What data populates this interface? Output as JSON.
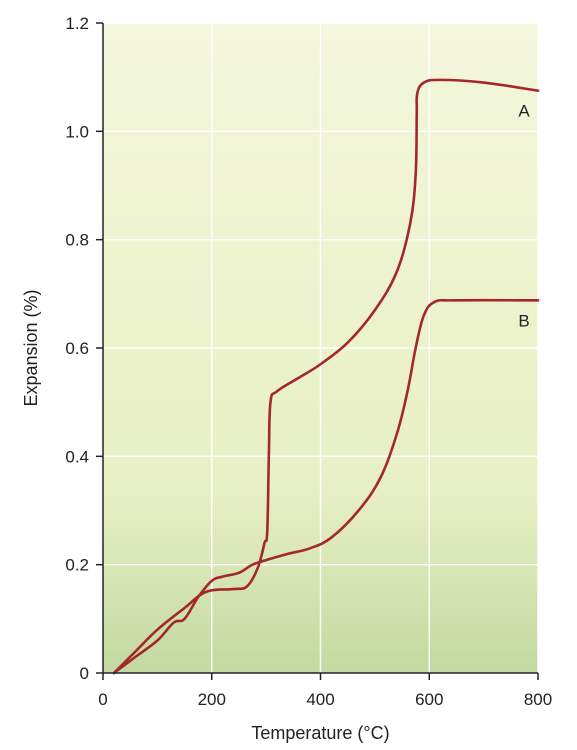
{
  "chart_data": {
    "type": "line",
    "title": "",
    "xlabel": "Temperature (°C)",
    "ylabel": "Expansion (%)",
    "xlim": [
      0,
      800
    ],
    "ylim": [
      0,
      1.2
    ],
    "x_ticks": [
      0,
      200,
      400,
      600,
      800
    ],
    "x_tick_labels": [
      "0",
      "200",
      "400",
      "600",
      "800"
    ],
    "y_ticks": [
      0,
      0.2,
      0.4,
      0.6,
      0.8,
      1.0,
      1.2
    ],
    "y_tick_labels": [
      "0",
      "0.2",
      "0.4",
      "0.6",
      "0.8",
      "1.0",
      "1.2"
    ],
    "grid": true,
    "background_gradient": [
      "#f4f7dc",
      "#e7efc4",
      "#c3d9a0"
    ],
    "series": [
      {
        "name": "A",
        "color": "#a3282b",
        "points": [
          [
            20,
            0
          ],
          [
            60,
            0.04
          ],
          [
            100,
            0.08
          ],
          [
            150,
            0.12
          ],
          [
            190,
            0.15
          ],
          [
            240,
            0.155
          ],
          [
            265,
            0.16
          ],
          [
            285,
            0.195
          ],
          [
            297,
            0.24
          ],
          [
            302,
            0.26
          ],
          [
            305,
            0.4
          ],
          [
            308,
            0.5
          ],
          [
            320,
            0.52
          ],
          [
            360,
            0.545
          ],
          [
            400,
            0.57
          ],
          [
            450,
            0.61
          ],
          [
            500,
            0.67
          ],
          [
            540,
            0.74
          ],
          [
            565,
            0.83
          ],
          [
            575,
            0.92
          ],
          [
            577,
            1.03
          ],
          [
            578,
            1.07
          ],
          [
            590,
            1.09
          ],
          [
            620,
            1.095
          ],
          [
            700,
            1.09
          ],
          [
            800,
            1.075
          ]
        ]
      },
      {
        "name": "B",
        "color": "#a3282b",
        "points": [
          [
            20,
            0
          ],
          [
            60,
            0.03
          ],
          [
            100,
            0.06
          ],
          [
            130,
            0.093
          ],
          [
            150,
            0.1
          ],
          [
            175,
            0.14
          ],
          [
            200,
            0.17
          ],
          [
            220,
            0.178
          ],
          [
            250,
            0.185
          ],
          [
            275,
            0.2
          ],
          [
            305,
            0.21
          ],
          [
            340,
            0.22
          ],
          [
            380,
            0.23
          ],
          [
            420,
            0.25
          ],
          [
            470,
            0.3
          ],
          [
            510,
            0.36
          ],
          [
            540,
            0.44
          ],
          [
            560,
            0.52
          ],
          [
            575,
            0.6
          ],
          [
            590,
            0.66
          ],
          [
            610,
            0.685
          ],
          [
            650,
            0.688
          ],
          [
            800,
            0.688
          ]
        ]
      }
    ]
  }
}
